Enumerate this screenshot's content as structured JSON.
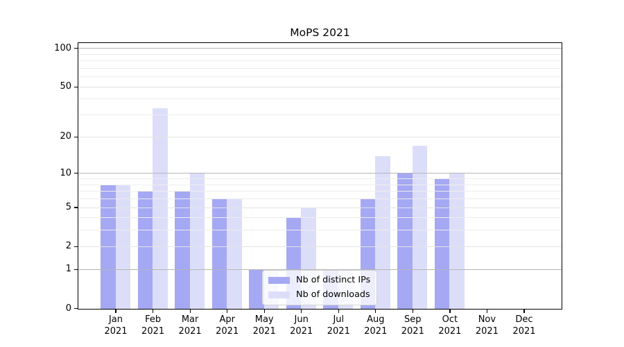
{
  "chart_data": {
    "type": "bar",
    "title": "MoPS 2021",
    "categories": [
      "Jan",
      "Feb",
      "Mar",
      "Apr",
      "May",
      "Jun",
      "Jul",
      "Aug",
      "Sep",
      "Oct",
      "Nov",
      "Dec"
    ],
    "category_year": "2021",
    "series": [
      {
        "name": "Nb of distinct IPs",
        "color": "#a5a8f3",
        "values": [
          8,
          7,
          7,
          6,
          1,
          4,
          1,
          6,
          10,
          9,
          0,
          0
        ]
      },
      {
        "name": "Nb of downloads",
        "color": "#dcdef9",
        "values": [
          8,
          34,
          10,
          6,
          1,
          5,
          1,
          14,
          17,
          10,
          0,
          0
        ]
      }
    ],
    "xlabel": "",
    "ylabel": "",
    "y_axis": {
      "scale": "log1p",
      "ylim": [
        0,
        112
      ],
      "tick_values": [
        100,
        50,
        20,
        10,
        5,
        2,
        1,
        0
      ],
      "tick_labels": [
        "100",
        "50",
        "20",
        "10",
        "5",
        "2",
        "1",
        "0"
      ],
      "major_grid_values": [
        1,
        10,
        100
      ],
      "mid_grid_values": [
        2,
        5,
        20,
        50
      ],
      "minor_grid_values": [
        3,
        4,
        6,
        7,
        8,
        9,
        30,
        40,
        60,
        70,
        80,
        90
      ]
    },
    "legend": {
      "position": "lower center",
      "entries": [
        "Nb of distinct IPs",
        "Nb of downloads"
      ]
    },
    "grid": true,
    "grid_above_bars": true,
    "colors": {
      "major_grid": "#b5b5b5",
      "mid_grid": "#e4e4e4",
      "minor_grid": "#ededed",
      "spine": "#000000",
      "text": "#000000",
      "legend_border": "#d3d3d3",
      "legend_bg": "rgba(255,255,255,0.8)"
    }
  }
}
